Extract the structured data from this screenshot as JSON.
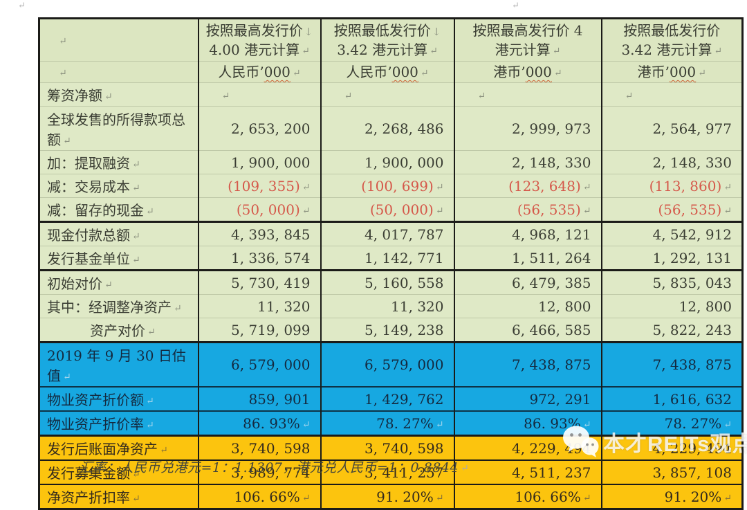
{
  "colors": {
    "header_green": "#dce6c1",
    "body_green": "#dfe9c6",
    "highlight_blue": "#17a8e1",
    "highlight_yellow": "#fcc40e",
    "negative_red": "#d5584a",
    "border_black": "#1b1b18"
  },
  "header": {
    "corner_marks": [
      "↵",
      "↵"
    ],
    "columns": [
      {
        "line1": "按照最高发行价",
        "arrow": "↓",
        "line2": "4.00 港元计算",
        "unit_currency": "人民币’",
        "unit_thousands": "000"
      },
      {
        "line1": "按照最低发行价",
        "arrow": "↓",
        "line2": "3.42 港元计算",
        "unit_currency": "人民币’",
        "unit_thousands": "000"
      },
      {
        "line1": "按照最高发行价 4",
        "arrow": "",
        "line2": "港元计算",
        "unit_currency": "港币’",
        "unit_thousands": "000"
      },
      {
        "line1": "按照最低发行价",
        "arrow": "",
        "line2": "3.42 港元计算",
        "unit_currency": "港币’",
        "unit_thousands": "000"
      }
    ]
  },
  "rows": [
    {
      "label": "筹资净额",
      "style": "green",
      "short": true,
      "values": [
        "",
        "",
        "",
        ""
      ],
      "empty_pilcrow": true
    },
    {
      "label": "全球发售的所得款项总额",
      "style": "green",
      "tall": true,
      "values": [
        "2, 653, 200",
        "2, 268, 486",
        "2, 999, 973",
        "2, 564, 977"
      ]
    },
    {
      "label": "加：提取融资",
      "style": "green",
      "values": [
        "1, 900, 000",
        "1, 900, 000",
        "2, 148, 330",
        "2, 148, 330"
      ]
    },
    {
      "label": "减：交易成本",
      "style": "green",
      "red": true,
      "cell_pilcrow": true,
      "values": [
        "(109, 355)",
        "(100, 699)",
        "(123, 648)",
        "(113, 860)"
      ]
    },
    {
      "label": "减：留存的现金",
      "style": "green",
      "red": true,
      "cell_pilcrow": true,
      "values": [
        "(50, 000)",
        "(50, 000)",
        "(56, 535)",
        "(56, 535)"
      ]
    },
    {
      "label": "现金付款总额",
      "style": "green",
      "thick_top": true,
      "values": [
        "4, 393, 845",
        "4, 017, 787",
        "4, 968, 121",
        "4, 542, 912"
      ]
    },
    {
      "label": "发行基金单位",
      "style": "green",
      "values": [
        "1, 336, 574",
        "1, 142, 771",
        "1, 511, 264",
        "1, 292, 131"
      ]
    },
    {
      "label": "初始对价",
      "style": "green",
      "thick_top": true,
      "values": [
        "5, 730, 419",
        "5, 160, 558",
        "6, 479, 385",
        "5, 835, 043"
      ]
    },
    {
      "label": "其中：经调整净资产",
      "style": "green",
      "values": [
        "11, 320",
        "11, 320",
        "12, 800",
        "12, 800"
      ]
    },
    {
      "label": "资产对价",
      "style": "green",
      "indent": true,
      "values": [
        "5, 719, 099",
        "5, 149, 238",
        "6, 466, 585",
        "5, 822, 243"
      ]
    },
    {
      "label": "2019 年 9 月 30 日估值",
      "style": "blue",
      "thick_top": true,
      "values": [
        "6, 579, 000",
        "6, 579, 000",
        "7, 438, 875",
        "7, 438, 875"
      ]
    },
    {
      "label": "物业资产折价额",
      "style": "blue",
      "values": [
        "859, 901",
        "1, 429, 762",
        "972, 291",
        "1, 616, 632"
      ]
    },
    {
      "label": "物业资产折价率",
      "style": "blue",
      "cell_pilcrow": true,
      "values": [
        "86. 93%",
        "78. 27%",
        "86. 93%",
        "78. 27%"
      ]
    },
    {
      "label": "发行后账面净资产",
      "style": "yellow",
      "thick_top": true,
      "values": [
        "3, 740, 598",
        "3, 740, 598",
        "4, 229, 494",
        "4, 229, 494"
      ]
    },
    {
      "label": "发行募集金额",
      "style": "yellow",
      "values": [
        "3, 989, 774",
        "3, 411, 257",
        "4, 511, 237",
        "3, 857, 108"
      ]
    },
    {
      "label": "净资产折扣率",
      "style": "yellow",
      "cell_pilcrow": true,
      "values": [
        "106. 66%",
        "91. 20%",
        "106. 66%",
        "91. 20%"
      ]
    }
  ],
  "footer": {
    "text": "汇率：人民币兑港元=1：1.1307，港元兑人民币=1：0.8844",
    "end_mark": "↵"
  },
  "watermark": {
    "icon": "wechat-icon",
    "text": "本才REITs观点"
  },
  "page_marks": {
    "top_left": "↵",
    "top_center": "↵",
    "row_end": "↵"
  }
}
